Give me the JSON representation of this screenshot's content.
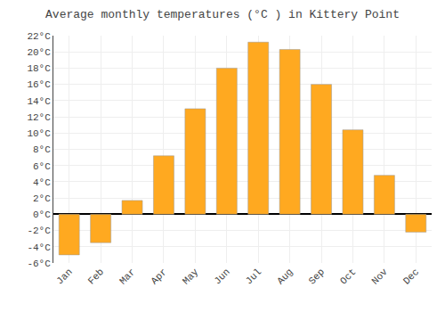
{
  "chart_data": {
    "type": "bar",
    "title": "Average monthly temperatures (°C ) in Kittery Point",
    "categories": [
      "Jan",
      "Feb",
      "Mar",
      "Apr",
      "May",
      "Jun",
      "Jul",
      "Aug",
      "Sep",
      "Oct",
      "Nov",
      "Dec"
    ],
    "values": [
      -5.0,
      -3.5,
      1.7,
      7.2,
      13.0,
      18.0,
      21.2,
      20.3,
      16.0,
      10.4,
      4.8,
      -2.2
    ],
    "color": "#FFA920",
    "ylim": [
      -6,
      22
    ],
    "yticks": [
      {
        "value": -6,
        "label": "-6°C"
      },
      {
        "value": -4,
        "label": "-4°C"
      },
      {
        "value": -2,
        "label": "-2°C"
      },
      {
        "value": 0,
        "label": "0°C"
      },
      {
        "value": 2,
        "label": "2°C"
      },
      {
        "value": 4,
        "label": "4°C"
      },
      {
        "value": 6,
        "label": "6°C"
      },
      {
        "value": 8,
        "label": "8°C"
      },
      {
        "value": 10,
        "label": "10°C"
      },
      {
        "value": 12,
        "label": "12°C"
      },
      {
        "value": 14,
        "label": "14°C"
      },
      {
        "value": 16,
        "label": "16°C"
      },
      {
        "value": 18,
        "label": "18°C"
      },
      {
        "value": 20,
        "label": "20°C"
      },
      {
        "value": 22,
        "label": "22°C"
      }
    ],
    "grid": true
  }
}
